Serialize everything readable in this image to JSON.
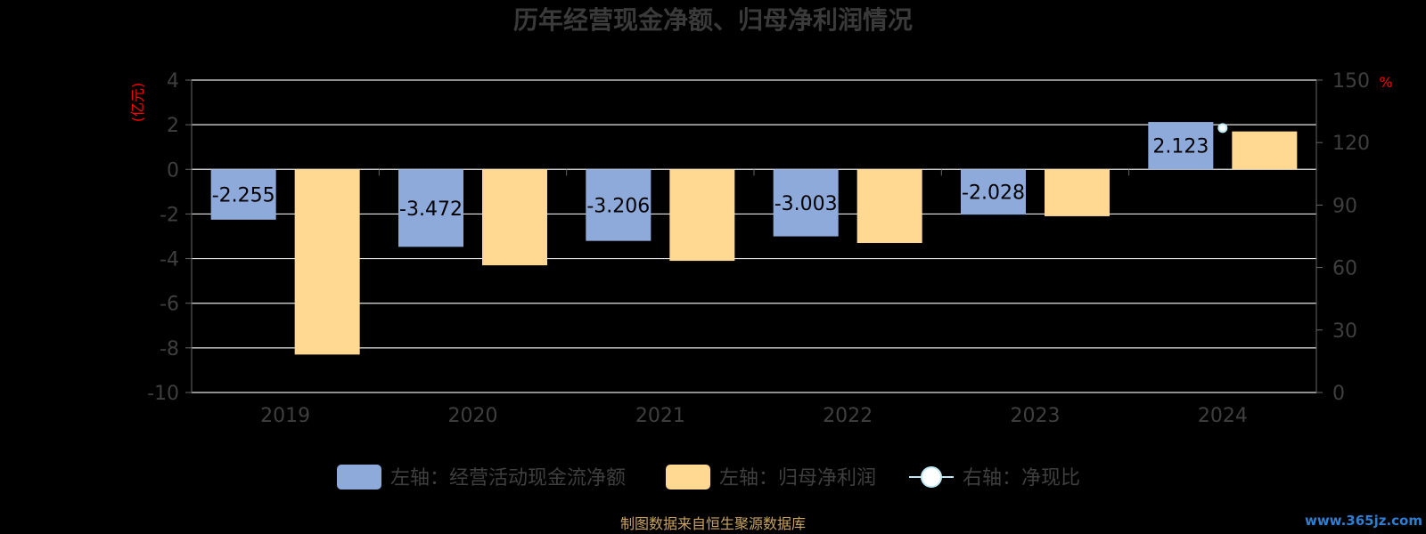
{
  "chart_data": {
    "type": "bar",
    "title": "历年经营现金净额、归母净利润情况",
    "left_unit": "(亿元)",
    "right_unit": "%",
    "categories": [
      "2019",
      "2020",
      "2021",
      "2022",
      "2023",
      "2024"
    ],
    "series": [
      {
        "name": "左轴：经营活动现金流净额",
        "axis": "left",
        "kind": "bar",
        "color": "#8eaadb",
        "values": [
          -2.255,
          -3.472,
          -3.206,
          -3.003,
          -2.028,
          2.123
        ],
        "labels": [
          "-2.255",
          "-3.472",
          "-3.206",
          "-3.003",
          "-2.028",
          "2.123"
        ]
      },
      {
        "name": "左轴：归母净利润",
        "axis": "left",
        "kind": "bar",
        "color": "#ffd991",
        "values": [
          -8.3,
          -4.3,
          -4.1,
          -3.3,
          -2.1,
          1.7
        ]
      },
      {
        "name": "右轴：净现比",
        "axis": "right",
        "kind": "line",
        "color": "#bfeaf5",
        "values": [
          null,
          null,
          null,
          null,
          null,
          127
        ]
      }
    ],
    "left_axis": {
      "min": -10,
      "max": 4,
      "step": 2,
      "ticks": [
        "-10",
        "-8",
        "-6",
        "-4",
        "-2",
        "0",
        "2",
        "4"
      ]
    },
    "right_axis": {
      "min": 0,
      "max": 150,
      "step": 30,
      "ticks": [
        "0",
        "30",
        "60",
        "90",
        "120",
        "150"
      ]
    },
    "grid": true,
    "legend_position": "bottom"
  },
  "source_note": "制图数据来自恒生聚源数据库",
  "watermark": "www.365jz.com"
}
